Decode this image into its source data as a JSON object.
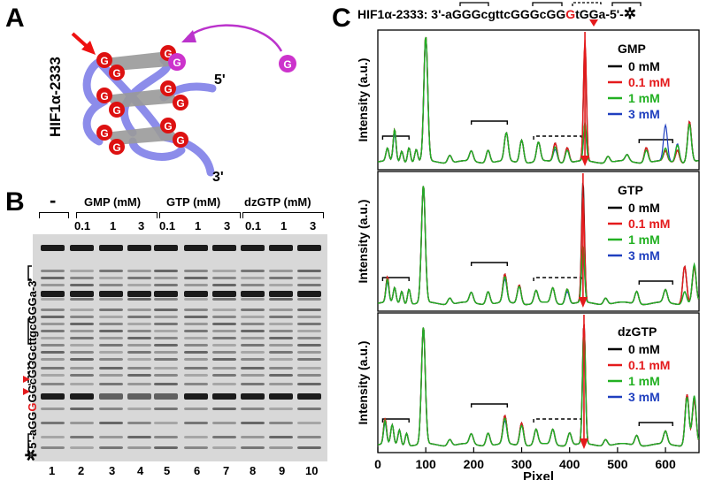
{
  "panels": {
    "a": "A",
    "b": "B",
    "c": "C"
  },
  "panel_a": {
    "label": "HIF1α-2333",
    "base": "G",
    "five_prime": "5'",
    "three_prime": "3'"
  },
  "panel_b": {
    "minus": "-",
    "groups": [
      "GMP (mM)",
      "GTP (mM)",
      "dzGTP (mM)"
    ],
    "concentrations": [
      "0.1",
      "1",
      "3",
      "0.1",
      "1",
      "3",
      "0.1",
      "1",
      "3"
    ],
    "lanes": [
      "1",
      "2",
      "3",
      "4",
      "5",
      "6",
      "7",
      "8",
      "9",
      "10"
    ],
    "sequence": {
      "star": "✲",
      "pre": "5'-aGG",
      "hl": "G",
      "post": "GGcGGGcttgcGGGa-3'"
    }
  },
  "panel_c": {
    "sequence": {
      "pre": "HIF1α-2333: 3'-aGGGcgttcGGGcGG",
      "hl": "G",
      "post": "tGGa-5'-",
      "star": "✲"
    },
    "xlabel": "Pixel",
    "ylabel": "Intensity (a.u.)",
    "xticks": [
      "0",
      "100",
      "200",
      "300",
      "400",
      "500",
      "600"
    ],
    "legend": [
      "0 mM",
      "0.1 mM",
      "1 mM",
      "3 mM"
    ],
    "colors": {
      "0 mM": "#000000",
      "0.1 mM": "#e41a1c",
      "1 mM": "#22b022",
      "3 mM": "#1f3fbf"
    },
    "subplots": [
      {
        "title": "GMP"
      },
      {
        "title": "GTP"
      },
      {
        "title": "dzGTP"
      }
    ]
  },
  "chart_data": {
    "type": "line",
    "xlabel": "Pixel",
    "ylabel": "Intensity (a.u.)",
    "xlim": [
      0,
      670
    ],
    "series_names": [
      "0 mM",
      "0.1 mM",
      "1 mM",
      "3 mM"
    ],
    "panels": [
      {
        "title": "GMP",
        "peaks": [
          {
            "x": 20,
            "w": 3,
            "h": [
              0.1,
              0.1,
              0.1,
              0.1
            ]
          },
          {
            "x": 35,
            "w": 3,
            "h": [
              0.25,
              0.25,
              0.25,
              0.22
            ]
          },
          {
            "x": 50,
            "w": 3,
            "h": [
              0.09,
              0.09,
              0.09,
              0.09
            ]
          },
          {
            "x": 65,
            "w": 3,
            "h": [
              0.12,
              0.12,
              0.12,
              0.12
            ]
          },
          {
            "x": 80,
            "w": 3,
            "h": [
              0.1,
              0.1,
              0.1,
              0.1
            ]
          },
          {
            "x": 100,
            "w": 4,
            "h": [
              0.98,
              0.98,
              0.98,
              0.96
            ]
          },
          {
            "x": 150,
            "w": 4,
            "h": [
              0.06,
              0.06,
              0.06,
              0.06
            ]
          },
          {
            "x": 195,
            "w": 4,
            "h": [
              0.08,
              0.08,
              0.08,
              0.08
            ]
          },
          {
            "x": 230,
            "w": 4,
            "h": [
              0.1,
              0.1,
              0.1,
              0.1
            ]
          },
          {
            "x": 268,
            "w": 4,
            "h": [
              0.22,
              0.22,
              0.22,
              0.22
            ]
          },
          {
            "x": 300,
            "w": 4,
            "h": [
              0.18,
              0.18,
              0.18,
              0.18
            ]
          },
          {
            "x": 335,
            "w": 4,
            "h": [
              0.15,
              0.15,
              0.15,
              0.15
            ]
          },
          {
            "x": 370,
            "w": 4,
            "h": [
              0.15,
              0.15,
              0.12,
              0.1
            ]
          },
          {
            "x": 395,
            "w": 4,
            "h": [
              0.12,
              0.12,
              0.1,
              0.1
            ]
          },
          {
            "x": 432,
            "w": 3,
            "h": [
              0.92,
              0.95,
              0.3,
              0.25
            ]
          },
          {
            "x": 480,
            "w": 4,
            "h": [
              0.05,
              0.05,
              0.05,
              0.05
            ]
          },
          {
            "x": 520,
            "w": 4,
            "h": [
              0.05,
              0.05,
              0.05,
              0.05
            ]
          },
          {
            "x": 560,
            "w": 4,
            "h": [
              0.12,
              0.12,
              0.1,
              0.1
            ]
          },
          {
            "x": 600,
            "w": 4,
            "h": [
              0.08,
              0.08,
              0.1,
              0.28
            ]
          },
          {
            "x": 625,
            "w": 4,
            "h": [
              0.1,
              0.1,
              0.14,
              0.15
            ]
          },
          {
            "x": 650,
            "w": 4,
            "h": [
              0.32,
              0.32,
              0.3,
              0.3
            ]
          }
        ]
      },
      {
        "title": "GTP",
        "peaks": [
          {
            "x": 20,
            "w": 3,
            "h": [
              0.2,
              0.2,
              0.18,
              0.16
            ]
          },
          {
            "x": 35,
            "w": 3,
            "h": [
              0.12,
              0.12,
              0.12,
              0.12
            ]
          },
          {
            "x": 50,
            "w": 3,
            "h": [
              0.1,
              0.1,
              0.1,
              0.1
            ]
          },
          {
            "x": 65,
            "w": 3,
            "h": [
              0.12,
              0.12,
              0.12,
              0.12
            ]
          },
          {
            "x": 95,
            "w": 4,
            "h": [
              0.92,
              0.92,
              0.92,
              0.92
            ]
          },
          {
            "x": 150,
            "w": 4,
            "h": [
              0.05,
              0.05,
              0.05,
              0.05
            ]
          },
          {
            "x": 195,
            "w": 4,
            "h": [
              0.08,
              0.08,
              0.08,
              0.08
            ]
          },
          {
            "x": 230,
            "w": 4,
            "h": [
              0.1,
              0.1,
              0.1,
              0.1
            ]
          },
          {
            "x": 265,
            "w": 4,
            "h": [
              0.22,
              0.22,
              0.2,
              0.18
            ]
          },
          {
            "x": 295,
            "w": 4,
            "h": [
              0.15,
              0.15,
              0.14,
              0.14
            ]
          },
          {
            "x": 330,
            "w": 4,
            "h": [
              0.1,
              0.1,
              0.1,
              0.1
            ]
          },
          {
            "x": 365,
            "w": 4,
            "h": [
              0.12,
              0.12,
              0.12,
              0.12
            ]
          },
          {
            "x": 395,
            "w": 4,
            "h": [
              0.12,
              0.12,
              0.12,
              0.1
            ]
          },
          {
            "x": 428,
            "w": 3,
            "h": [
              0.95,
              0.85,
              0.45,
              0.4
            ]
          },
          {
            "x": 475,
            "w": 4,
            "h": [
              0.05,
              0.05,
              0.05,
              0.05
            ]
          },
          {
            "x": 540,
            "w": 4,
            "h": [
              0.1,
              0.1,
              0.1,
              0.1
            ]
          },
          {
            "x": 600,
            "w": 4,
            "h": [
              0.1,
              0.1,
              0.1,
              0.1
            ]
          },
          {
            "x": 640,
            "w": 4,
            "h": [
              0.3,
              0.3,
              0.1,
              0.1
            ]
          },
          {
            "x": 660,
            "w": 4,
            "h": [
              0.28,
              0.28,
              0.3,
              0.3
            ]
          }
        ]
      },
      {
        "title": "dzGTP",
        "peaks": [
          {
            "x": 15,
            "w": 3,
            "h": [
              0.2,
              0.2,
              0.18,
              0.16
            ]
          },
          {
            "x": 30,
            "w": 3,
            "h": [
              0.15,
              0.15,
              0.15,
              0.15
            ]
          },
          {
            "x": 45,
            "w": 3,
            "h": [
              0.12,
              0.12,
              0.12,
              0.12
            ]
          },
          {
            "x": 60,
            "w": 3,
            "h": [
              0.1,
              0.1,
              0.1,
              0.1
            ]
          },
          {
            "x": 95,
            "w": 4,
            "h": [
              0.92,
              0.92,
              0.92,
              0.92
            ]
          },
          {
            "x": 150,
            "w": 4,
            "h": [
              0.05,
              0.05,
              0.05,
              0.05
            ]
          },
          {
            "x": 195,
            "w": 4,
            "h": [
              0.08,
              0.08,
              0.08,
              0.08
            ]
          },
          {
            "x": 230,
            "w": 4,
            "h": [
              0.1,
              0.1,
              0.1,
              0.1
            ]
          },
          {
            "x": 265,
            "w": 4,
            "h": [
              0.22,
              0.22,
              0.2,
              0.18
            ]
          },
          {
            "x": 300,
            "w": 4,
            "h": [
              0.18,
              0.18,
              0.16,
              0.16
            ]
          },
          {
            "x": 330,
            "w": 4,
            "h": [
              0.12,
              0.12,
              0.12,
              0.12
            ]
          },
          {
            "x": 365,
            "w": 4,
            "h": [
              0.12,
              0.12,
              0.12,
              0.12
            ]
          },
          {
            "x": 400,
            "w": 4,
            "h": [
              0.1,
              0.1,
              0.1,
              0.1
            ]
          },
          {
            "x": 430,
            "w": 3,
            "h": [
              0.95,
              0.95,
              0.85,
              0.8
            ]
          },
          {
            "x": 475,
            "w": 4,
            "h": [
              0.05,
              0.05,
              0.05,
              0.05
            ]
          },
          {
            "x": 540,
            "w": 4,
            "h": [
              0.08,
              0.08,
              0.08,
              0.08
            ]
          },
          {
            "x": 600,
            "w": 4,
            "h": [
              0.1,
              0.1,
              0.1,
              0.1
            ]
          },
          {
            "x": 645,
            "w": 4,
            "h": [
              0.4,
              0.4,
              0.38,
              0.38
            ]
          },
          {
            "x": 660,
            "w": 4,
            "h": [
              0.35,
              0.35,
              0.38,
              0.38
            ]
          }
        ]
      }
    ]
  }
}
